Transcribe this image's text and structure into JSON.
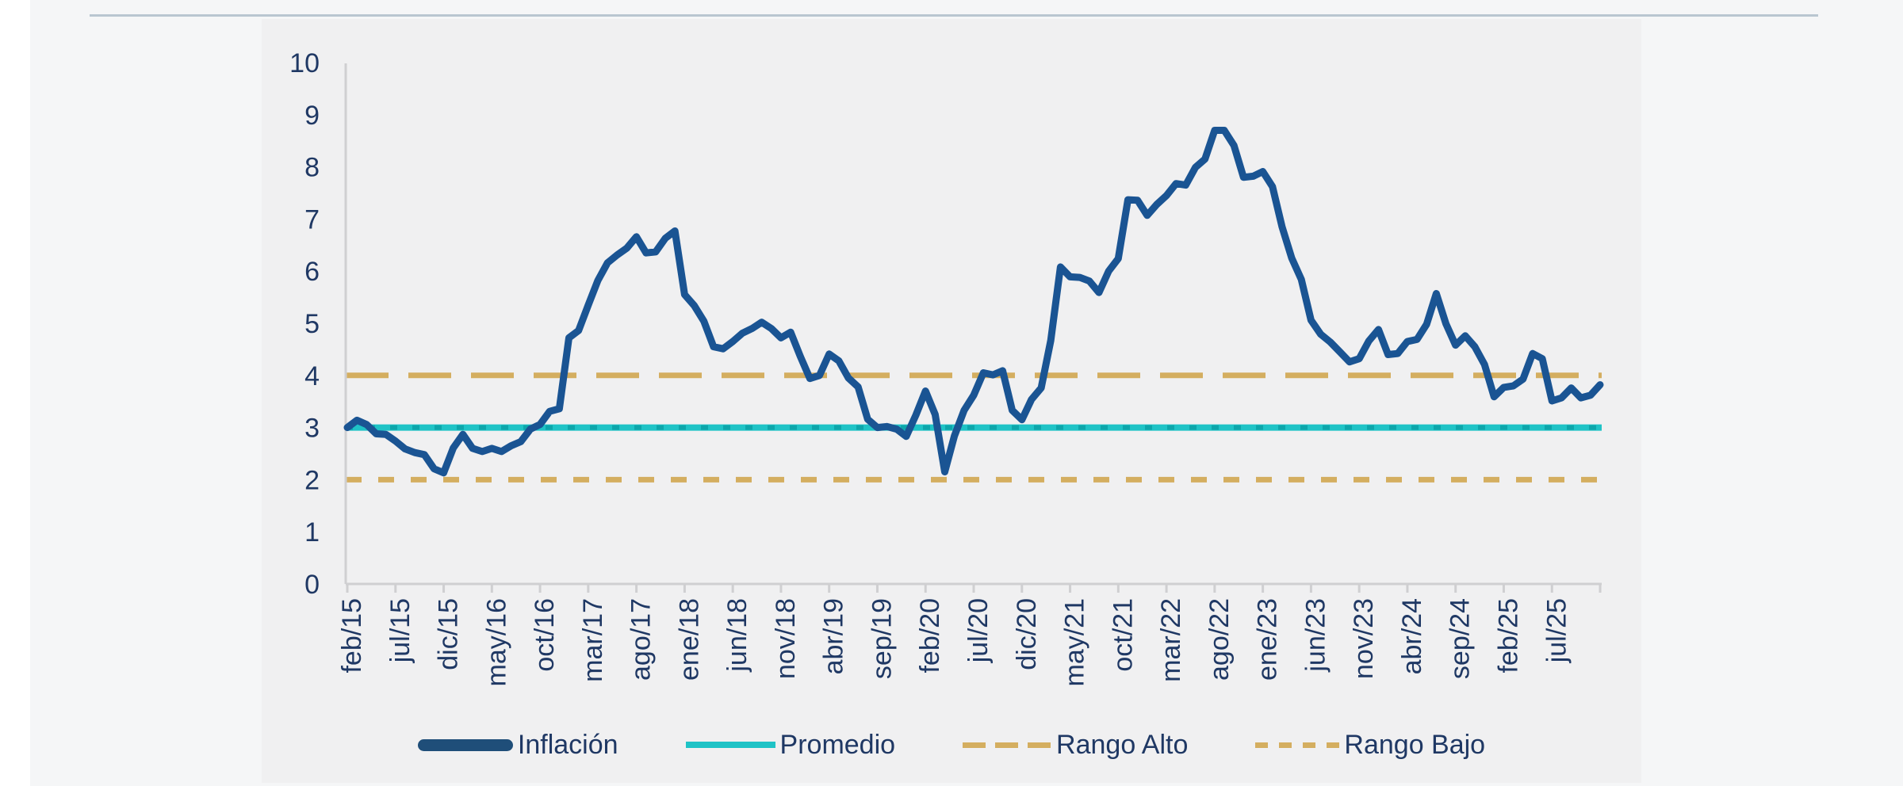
{
  "page": {
    "background": "#ffffff",
    "band_color": "#f5f6f7",
    "card_color": "#f0f0f1",
    "rule_color": "#b9c6d0",
    "axis_color": "#cfcfd1",
    "label_color": "#1f3864"
  },
  "chart_data": {
    "type": "line",
    "title": "",
    "xlabel": "",
    "ylabel": "",
    "ylim": [
      0,
      10
    ],
    "y_tick_labels": [
      10,
      9,
      8,
      7,
      6,
      5,
      4,
      3,
      2,
      1,
      0
    ],
    "x_tick_labels": [
      "feb/15",
      "jul/15",
      "dic/15",
      "may/16",
      "oct/16",
      "mar/17",
      "ago/17",
      "ene/18",
      "jun/18",
      "nov/18",
      "abr/19",
      "sep/19",
      "feb/20",
      "jul/20",
      "dic/20",
      "may/21",
      "oct/21",
      "mar/22",
      "ago/22",
      "ene/23",
      "jun/23",
      "nov/23",
      "abr/24",
      "sep/24",
      "feb/25",
      "jul/25"
    ],
    "x_tick_interval_months": 5,
    "x_range": {
      "start": "feb/15",
      "end": "dic/25"
    },
    "grid": false,
    "legend_position": "bottom",
    "series": [
      {
        "name": "Inflación",
        "type": "line",
        "style": "solid",
        "color": "#1a5493",
        "legend_swatch_color": "#1f4e79",
        "values": [
          3.0,
          3.14,
          3.06,
          2.88,
          2.87,
          2.74,
          2.59,
          2.52,
          2.48,
          2.21,
          2.13,
          2.61,
          2.87,
          2.6,
          2.54,
          2.6,
          2.54,
          2.65,
          2.73,
          2.97,
          3.06,
          3.31,
          3.36,
          4.72,
          4.86,
          5.35,
          5.82,
          6.16,
          6.31,
          6.44,
          6.66,
          6.35,
          6.37,
          6.63,
          6.77,
          5.55,
          5.34,
          5.04,
          4.55,
          4.51,
          4.65,
          4.81,
          4.9,
          5.02,
          4.9,
          4.72,
          4.83,
          4.37,
          3.94,
          4.0,
          4.41,
          4.28,
          3.95,
          3.78,
          3.16,
          3.0,
          3.02,
          2.97,
          2.83,
          3.24,
          3.7,
          3.25,
          2.15,
          2.84,
          3.33,
          3.62,
          4.05,
          4.01,
          4.09,
          3.33,
          3.15,
          3.54,
          3.76,
          4.67,
          6.08,
          5.89,
          5.88,
          5.81,
          5.59,
          6.0,
          6.24,
          7.37,
          7.36,
          7.07,
          7.28,
          7.45,
          7.68,
          7.65,
          7.99,
          8.15,
          8.7,
          8.7,
          8.41,
          7.8,
          7.82,
          7.91,
          7.62,
          6.85,
          6.25,
          5.84,
          5.06,
          4.79,
          4.64,
          4.45,
          4.26,
          4.32,
          4.66,
          4.88,
          4.4,
          4.42,
          4.65,
          4.69,
          4.98,
          5.57,
          4.99,
          4.58,
          4.76,
          4.55,
          4.21,
          3.59,
          3.77,
          3.8,
          3.93,
          4.42,
          4.32,
          3.51,
          3.57,
          3.76,
          3.57,
          3.62,
          3.82
        ]
      },
      {
        "name": "Promedio",
        "type": "reference-line",
        "style": "solid-with-dots",
        "color": "#1fc3c6",
        "dot_color": "#0da6ab",
        "value": 3
      },
      {
        "name": "Rango Alto",
        "type": "reference-line",
        "style": "long-dash",
        "color": "#d4ae60",
        "value": 4
      },
      {
        "name": "Rango Bajo",
        "type": "reference-line",
        "style": "short-dash",
        "color": "#d4ae60",
        "value": 2
      }
    ]
  }
}
